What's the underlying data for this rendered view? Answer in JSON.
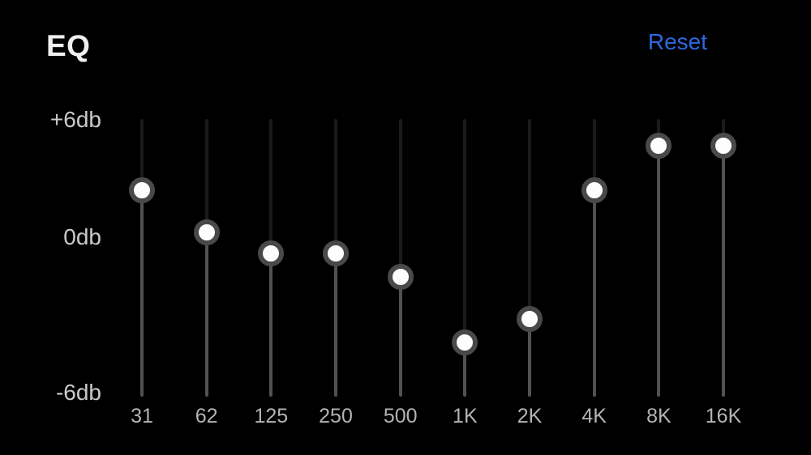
{
  "app": {
    "title": "EQ"
  },
  "header": {
    "reset_label": "Reset"
  },
  "axis": {
    "unit": "db",
    "labels": [
      {
        "text": "+6db",
        "db": 6
      },
      {
        "text": "0db",
        "db": 0
      },
      {
        "text": "-6db",
        "db": -6
      }
    ]
  },
  "equalizer": {
    "min_db": -6,
    "max_db": 6,
    "bands": [
      {
        "freq": "31",
        "db": 3.2
      },
      {
        "freq": "62",
        "db": 1.2
      },
      {
        "freq": "125",
        "db": 0.2
      },
      {
        "freq": "250",
        "db": 0.2
      },
      {
        "freq": "500",
        "db": -0.9
      },
      {
        "freq": "1K",
        "db": -4.0
      },
      {
        "freq": "2K",
        "db": -2.9
      },
      {
        "freq": "4K",
        "db": 3.2
      },
      {
        "freq": "8K",
        "db": 5.3
      },
      {
        "freq": "16K",
        "db": 5.3
      }
    ]
  },
  "colors": {
    "background": "#000000",
    "title": "#efefef",
    "accent": "#2d68e2",
    "axis_label": "#c9c9c9",
    "freq_label": "#b3b3b3",
    "track_upper": "#1a1a1a",
    "track_lower": "#515151",
    "knob_fill": "#fdfdfd",
    "knob_ring": "#494949"
  }
}
